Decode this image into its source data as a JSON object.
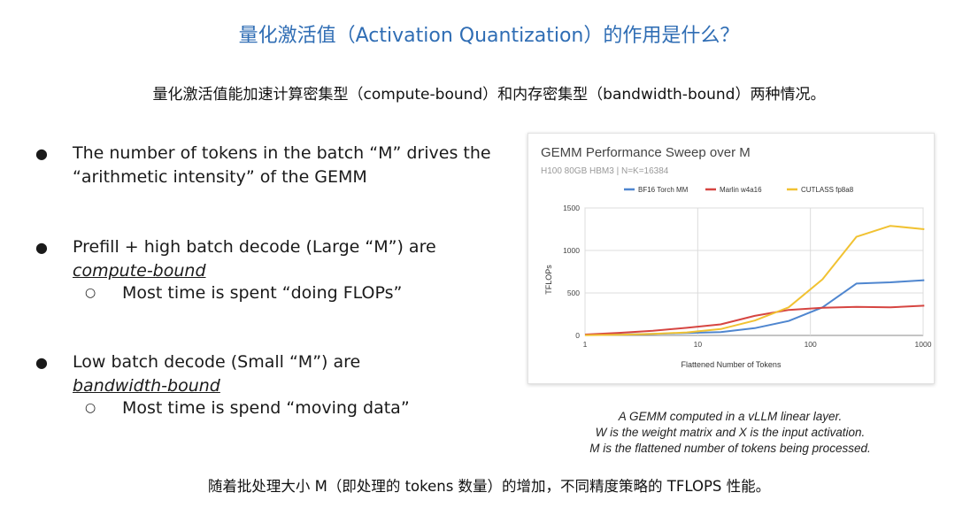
{
  "slide": {
    "title": "量化激活值（Activation Quantization）的作用是什么？",
    "subtitle": "量化激活值能加速计算密集型（compute-bound）和内存密集型（bandwidth-bound）两种情况。",
    "footer": "随着批处理大小 M（即处理的 tokens 数量）的增加，不同精度策略的 TFLOPS 性能。"
  },
  "bullets": [
    {
      "text": "The number of tokens in the batch “M” drives the “arithmetic intensity” of the GEMM",
      "emphasis": "",
      "sub": ""
    },
    {
      "text": "Prefill + high batch decode (Large “M”) are",
      "emphasis": "compute-bound",
      "sub": "Most time is spent “doing FLOPs”"
    },
    {
      "text": "Low batch decode (Small “M”) are",
      "emphasis": "bandwidth-bound",
      "sub": "Most time is spend “moving data”"
    }
  ],
  "caption": {
    "line1": "A GEMM computed in a vLLM linear layer.",
    "line2": "W is the weight matrix and X is the input activation.",
    "line3": "M is the flattened number of tokens being processed."
  },
  "chart_data": {
    "type": "line",
    "title": "GEMM Performance Sweep over M",
    "subtitle": "H100 80GB HBM3 | N=K=16384",
    "xlabel": "Flattened Number of Tokens",
    "ylabel": "TFLOPs",
    "xscale": "log",
    "xlim": [
      1,
      1000
    ],
    "ylim": [
      0,
      1500
    ],
    "xticks": [
      1,
      10,
      100,
      1000
    ],
    "yticks": [
      0,
      500,
      1000,
      1500
    ],
    "grid": true,
    "legend_position": "top",
    "x": [
      1,
      2,
      4,
      8,
      16,
      32,
      64,
      128,
      256,
      512,
      1024
    ],
    "series": [
      {
        "name": "BF16 Torch MM",
        "color": "#4f86cf",
        "values": [
          5,
          10,
          18,
          28,
          40,
          85,
          170,
          330,
          610,
          625,
          650
        ]
      },
      {
        "name": "Marlin w4a16",
        "color": "#d64541",
        "values": [
          10,
          30,
          55,
          90,
          130,
          230,
          300,
          325,
          335,
          330,
          350
        ]
      },
      {
        "name": "CUTLASS fp8a8",
        "color": "#f1c232",
        "values": [
          3,
          8,
          18,
          35,
          75,
          175,
          330,
          660,
          1160,
          1290,
          1250
        ]
      }
    ]
  }
}
